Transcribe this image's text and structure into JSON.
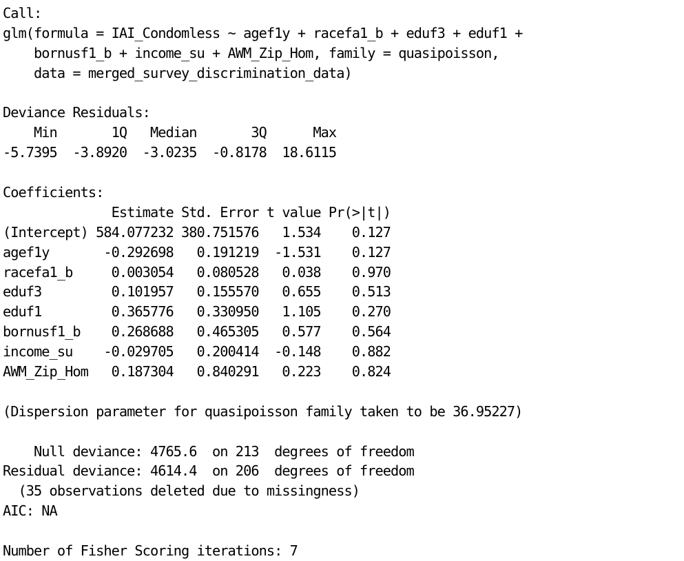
{
  "console_output": {
    "call_header": "Call:",
    "call_lines": [
      "glm(formula = IAI_Condomless ~ agef1y + racefa1_b + eduf3 + eduf1 +",
      "    bornusf1_b + income_su + AWM_Zip_Hom, family = quasipoisson,",
      "    data = merged_survey_discrimination_data)"
    ],
    "deviance_residuals": {
      "header": "Deviance Residuals:",
      "labels_line": "    Min       1Q   Median       3Q      Max  ",
      "values_line": "-5.7395  -3.8920  -3.0235  -0.8178  18.6115  "
    },
    "coefficients": {
      "header": "Coefficients:",
      "columns_line": "              Estimate Std. Error t value Pr(>|t|)",
      "rows": [
        "(Intercept) 584.077232 380.751576   1.534    0.127",
        "agef1y       -0.292698   0.191219  -1.531    0.127",
        "racefa1_b     0.003054   0.080528   0.038    0.970",
        "eduf3         0.101957   0.155570   0.655    0.513",
        "eduf1         0.365776   0.330950   1.105    0.270",
        "bornusf1_b    0.268688   0.465305   0.577    0.564",
        "income_su    -0.029705   0.200414  -0.148    0.882",
        "AWM_Zip_Hom   0.187304   0.840291   0.223    0.824"
      ]
    },
    "dispersion_line": "(Dispersion parameter for quasipoisson family taken to be 36.95227)",
    "deviance_lines": [
      "    Null deviance: 4765.6  on 213  degrees of freedom",
      "Residual deviance: 4614.4  on 206  degrees of freedom",
      "  (35 observations deleted due to missingness)",
      "AIC: NA"
    ],
    "fisher_line": "Number of Fisher Scoring iterations: 7"
  }
}
